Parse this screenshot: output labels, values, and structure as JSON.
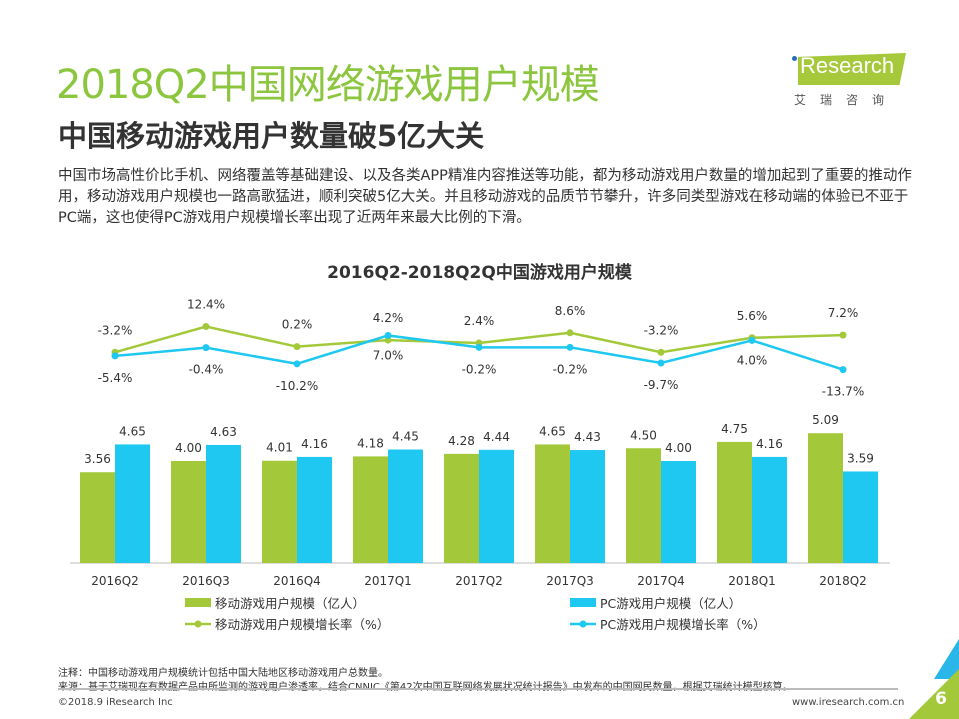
{
  "title": "2018Q2中国网络游戏用户规模",
  "subtitle": "中国移动游戏用户数量破5亿大关",
  "description": "中国市场高性价比手机、网络覆盖等基础建设、以及各类APP精准内容推送等功能，都为移动游戏用户数量的增加起到了重要的推动作用，移动游戏用户规模也一路高歌猛进，顺利突破5亿大关。并且移动游戏的品质节节攀升，许多同类型游戏在移动端的体验已不亚于PC端，这也使得PC游戏用户规模增长率出现了近两年来最大比例的下滑。",
  "logo": {
    "text": "iResearch",
    "cn": "艾瑞咨询"
  },
  "colors": {
    "green": "#a3c93a",
    "blue": "#1ec8f0",
    "title_green": "#8cc63f"
  },
  "chart_data": {
    "type": "bar+line",
    "title": "2016Q2-2018Q2Q中国游戏用户规模",
    "categories": [
      "2016Q2",
      "2016Q3",
      "2016Q4",
      "2017Q1",
      "2017Q2",
      "2017Q3",
      "2017Q4",
      "2018Q1",
      "2018Q2"
    ],
    "bar_series": [
      {
        "name": "移动游戏用户规模（亿人）",
        "color": "#a3c93a",
        "values": [
          3.56,
          4.0,
          4.01,
          4.18,
          4.28,
          4.65,
          4.5,
          4.75,
          5.09
        ],
        "labels": [
          "3.56",
          "4.00",
          "4.01",
          "4.18",
          "4.28",
          "4.65",
          "4.50",
          "4.75",
          "5.09"
        ]
      },
      {
        "name": "PC游戏用户规模（亿人）",
        "color": "#1ec8f0",
        "values": [
          4.65,
          4.63,
          4.16,
          4.45,
          4.44,
          4.43,
          4.0,
          4.16,
          3.59
        ],
        "labels": [
          "4.65",
          "4.63",
          "4.16",
          "4.45",
          "4.44",
          "4.43",
          "4.00",
          "4.16",
          "3.59"
        ]
      }
    ],
    "line_series": [
      {
        "name": "移动游戏用户规模增长率（%）",
        "color": "#a3c93a",
        "values": [
          -3.2,
          12.4,
          0.2,
          4.2,
          2.4,
          8.6,
          -3.2,
          5.6,
          7.2
        ],
        "labels": [
          "-3.2%",
          "12.4%",
          "0.2%",
          "4.2%",
          "2.4%",
          "8.6%",
          "-3.2%",
          "5.6%",
          "7.2%"
        ]
      },
      {
        "name": "PC游戏用户规模增长率（%）",
        "color": "#1ec8f0",
        "values": [
          -5.4,
          -0.4,
          -10.2,
          7.0,
          -0.2,
          -0.2,
          -9.7,
          4.0,
          -13.7
        ],
        "labels": [
          "-5.4%",
          "-0.4%",
          "-10.2%",
          "7.0%",
          "-0.2%",
          "-0.2%",
          "-9.7%",
          "4.0%",
          "-13.7%"
        ]
      }
    ],
    "legend": "bottom",
    "grid": false
  },
  "notes": {
    "note": "注释：中国移动游戏用户规模统计包括中国大陆地区移动游戏用户总数量。",
    "source": "来源：基于艾瑞现在有数据产品中所监测的游戏用户渗透率，结合CNNIC《第42次中国互联网络发展状况统计报告》中发布的中国网民数量，根据艾瑞统计模型核算。"
  },
  "footer": {
    "copyright": "©2018.9 iResearch Inc",
    "url": "www.iresearch.com.cn",
    "page": "6"
  }
}
